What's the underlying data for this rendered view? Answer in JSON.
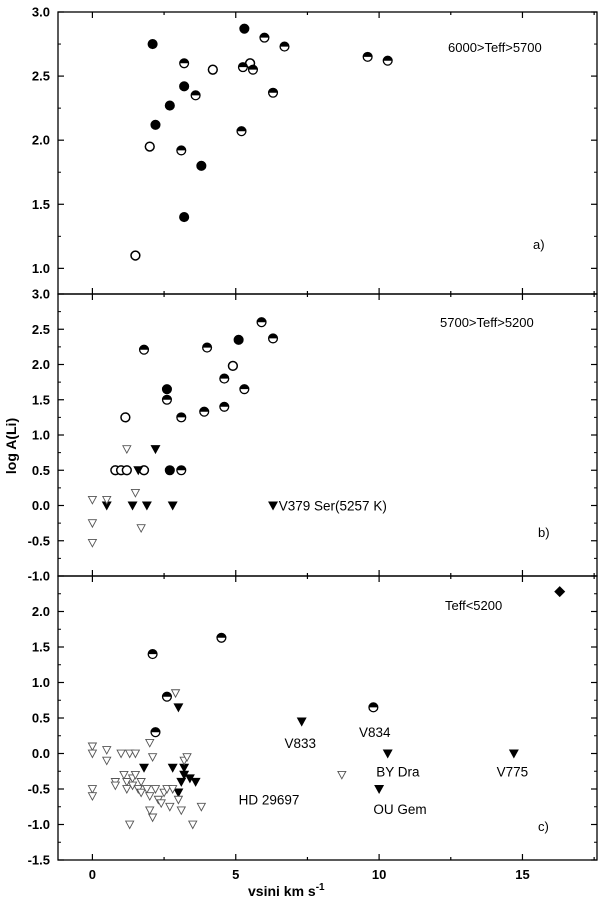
{
  "figure": {
    "xlabel": "vsini    km s",
    "xlabel_sup": "-1",
    "ylabel": "log A(Li)"
  },
  "chart_data": [
    {
      "type": "scatter",
      "panel": "a)",
      "condition": "6000>Teff>5700",
      "xlim": [
        -1.2,
        17.6
      ],
      "ylim": [
        0.8,
        3.0
      ],
      "yticks": [
        "1.0",
        "1.5",
        "2.0",
        "2.5",
        "3.0"
      ],
      "series": [
        {
          "marker": "filled-circle",
          "points": [
            [
              2.1,
              2.75
            ],
            [
              2.2,
              2.12
            ],
            [
              2.7,
              2.27
            ],
            [
              3.2,
              2.42
            ],
            [
              3.2,
              1.4
            ],
            [
              3.8,
              1.8
            ],
            [
              5.3,
              2.87
            ]
          ]
        },
        {
          "marker": "open-circle",
          "points": [
            [
              1.5,
              1.1
            ],
            [
              2.0,
              1.95
            ],
            [
              4.2,
              2.55
            ],
            [
              5.5,
              2.6
            ]
          ]
        },
        {
          "marker": "half-circle",
          "points": [
            [
              3.1,
              1.92
            ],
            [
              3.2,
              2.6
            ],
            [
              3.6,
              2.35
            ],
            [
              5.2,
              2.07
            ],
            [
              5.25,
              2.57
            ],
            [
              5.6,
              2.55
            ],
            [
              6.0,
              2.8
            ],
            [
              6.3,
              2.37
            ],
            [
              6.7,
              2.73
            ],
            [
              9.6,
              2.65
            ],
            [
              10.3,
              2.62
            ]
          ]
        }
      ],
      "annotations": []
    },
    {
      "type": "scatter",
      "panel": "b)",
      "condition": "5700>Teff>5200",
      "xlim": [
        -1.2,
        17.6
      ],
      "ylim": [
        -1.0,
        3.0
      ],
      "yticks": [
        "-1.0",
        "-0.5",
        "0.0",
        "0.5",
        "1.0",
        "1.5",
        "2.0",
        "2.5",
        "3.0"
      ],
      "series": [
        {
          "marker": "filled-circle",
          "points": [
            [
              2.6,
              1.65
            ],
            [
              2.7,
              0.5
            ],
            [
              5.1,
              2.35
            ]
          ]
        },
        {
          "marker": "open-circle",
          "points": [
            [
              0.8,
              0.5
            ],
            [
              1.0,
              0.5
            ],
            [
              1.2,
              0.5
            ],
            [
              1.15,
              1.25
            ],
            [
              1.8,
              0.5
            ],
            [
              4.9,
              1.98
            ]
          ]
        },
        {
          "marker": "half-circle",
          "points": [
            [
              1.8,
              2.21
            ],
            [
              2.6,
              1.5
            ],
            [
              3.1,
              1.25
            ],
            [
              3.1,
              0.5
            ],
            [
              3.9,
              1.33
            ],
            [
              4.0,
              2.24
            ],
            [
              4.6,
              1.8
            ],
            [
              4.6,
              1.4
            ],
            [
              5.3,
              1.65
            ],
            [
              5.9,
              2.6
            ],
            [
              6.3,
              2.37
            ]
          ]
        },
        {
          "marker": "filled-triangle-down",
          "points": [
            [
              0.5,
              0.0
            ],
            [
              1.4,
              0.0
            ],
            [
              1.6,
              0.5
            ],
            [
              1.9,
              0.0
            ],
            [
              2.2,
              0.8
            ],
            [
              2.8,
              0.0
            ]
          ]
        },
        {
          "marker": "open-triangle-down",
          "points": [
            [
              0.0,
              0.08
            ],
            [
              0.0,
              -0.25
            ],
            [
              0.0,
              -0.53
            ],
            [
              0.5,
              0.08
            ],
            [
              1.2,
              0.8
            ],
            [
              1.5,
              0.18
            ],
            [
              1.7,
              -0.32
            ]
          ]
        },
        {
          "marker": "filled-triangle-down",
          "points": [
            [
              6.3,
              0.0
            ]
          ]
        }
      ],
      "annotations": [
        {
          "text": "V379 Ser(5257 K)",
          "x": 6.5,
          "y": 0.0
        }
      ]
    },
    {
      "type": "scatter",
      "panel": "c)",
      "condition": "Teff<5200",
      "xlim": [
        -1.2,
        17.6
      ],
      "ylim": [
        -1.5,
        2.5
      ],
      "yticks": [
        "-1.5",
        "-1.0",
        "-0.5",
        "0.0",
        "0.5",
        "1.0",
        "1.5",
        "2.0"
      ],
      "series": [
        {
          "marker": "half-circle",
          "points": [
            [
              2.1,
              1.4
            ],
            [
              4.5,
              1.63
            ],
            [
              2.6,
              0.8
            ],
            [
              2.2,
              0.3
            ],
            [
              9.8,
              0.65
            ]
          ]
        },
        {
          "marker": "filled-diamond",
          "points": [
            [
              16.3,
              2.28
            ]
          ]
        },
        {
          "marker": "filled-triangle-down",
          "points": [
            [
              2.8,
              -0.2
            ],
            [
              3.0,
              0.65
            ],
            [
              3.1,
              -0.4
            ],
            [
              3.2,
              -0.2
            ],
            [
              3.2,
              -0.3
            ],
            [
              3.4,
              -0.35
            ],
            [
              3.6,
              -0.4
            ],
            [
              3.0,
              -0.55
            ],
            [
              1.8,
              -0.2
            ],
            [
              7.3,
              0.45
            ],
            [
              10.3,
              0.0
            ],
            [
              14.7,
              0.0
            ],
            [
              10.0,
              -0.5
            ]
          ]
        },
        {
          "marker": "open-triangle-down",
          "points": [
            [
              0.0,
              0.1
            ],
            [
              0.0,
              0.0
            ],
            [
              0.0,
              -0.5
            ],
            [
              0.0,
              -0.6
            ],
            [
              0.5,
              0.05
            ],
            [
              0.5,
              -0.1
            ],
            [
              0.8,
              -0.4
            ],
            [
              0.8,
              -0.45
            ],
            [
              1.0,
              0.0
            ],
            [
              1.1,
              -0.3
            ],
            [
              1.2,
              -0.4
            ],
            [
              1.2,
              -0.5
            ],
            [
              1.3,
              0.0
            ],
            [
              1.4,
              -0.35
            ],
            [
              1.4,
              -0.45
            ],
            [
              1.5,
              0.0
            ],
            [
              1.5,
              -0.3
            ],
            [
              1.6,
              -0.5
            ],
            [
              1.7,
              -0.55
            ],
            [
              1.7,
              -0.4
            ],
            [
              1.9,
              -0.5
            ],
            [
              2.0,
              -0.6
            ],
            [
              2.0,
              0.15
            ],
            [
              2.1,
              -0.9
            ],
            [
              2.1,
              -0.05
            ],
            [
              2.2,
              -0.5
            ],
            [
              2.3,
              -0.65
            ],
            [
              2.4,
              -0.7
            ],
            [
              2.5,
              -0.55
            ],
            [
              2.6,
              -0.5
            ],
            [
              2.7,
              -0.75
            ],
            [
              2.8,
              -0.5
            ],
            [
              2.9,
              0.85
            ],
            [
              3.0,
              -0.65
            ],
            [
              3.1,
              -0.8
            ],
            [
              3.2,
              -0.1
            ],
            [
              3.3,
              -0.05
            ],
            [
              3.5,
              -1.0
            ],
            [
              3.8,
              -0.75
            ],
            [
              1.3,
              -1.0
            ],
            [
              2.0,
              -0.8
            ],
            [
              8.7,
              -0.3
            ]
          ]
        }
      ],
      "annotations": [
        {
          "text": "V833",
          "x": 6.7,
          "y": 0.15
        },
        {
          "text": "V834",
          "x": 9.3,
          "y": 0.3
        },
        {
          "text": "BY Dra",
          "x": 9.9,
          "y": -0.25
        },
        {
          "text": "V775",
          "x": 14.1,
          "y": -0.25
        },
        {
          "text": "HD 29697",
          "x": 5.1,
          "y": -0.65
        },
        {
          "text": "OU Gem",
          "x": 9.8,
          "y": -0.78
        }
      ]
    }
  ],
  "xticks": [
    "0",
    "5",
    "10",
    "15"
  ]
}
